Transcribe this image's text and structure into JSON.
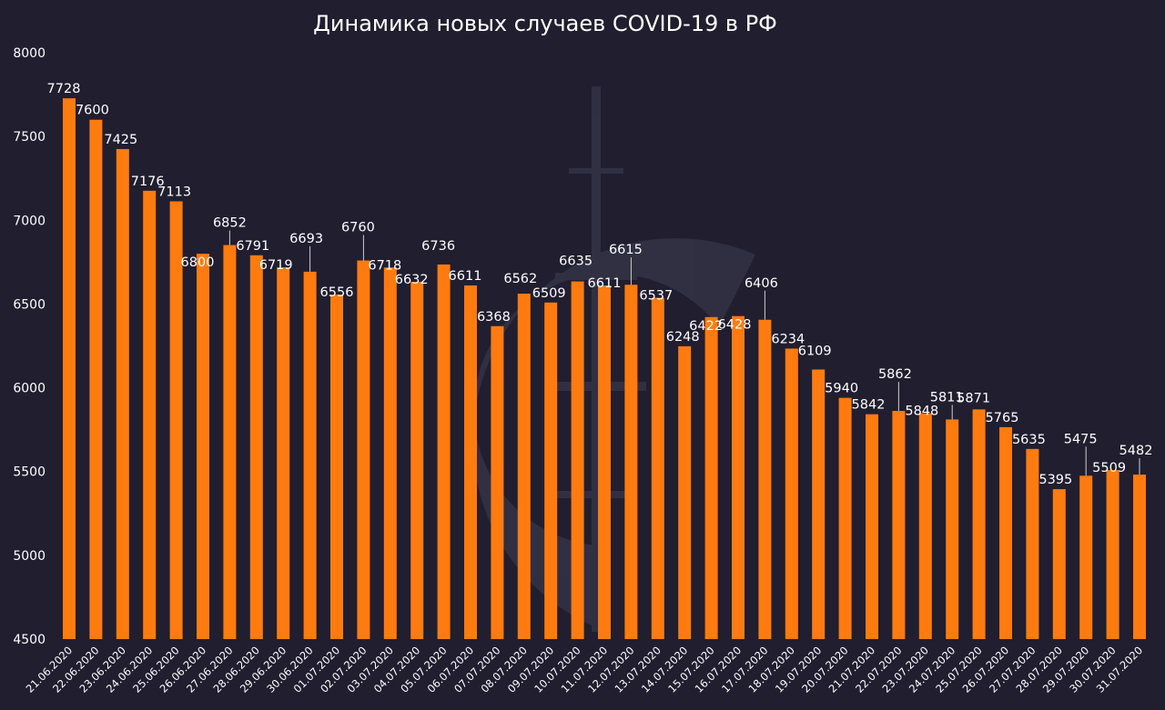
{
  "chart_data": {
    "type": "bar",
    "title": "Динамика новых случаев COVID-19 в РФ",
    "xlabel": "",
    "ylabel": "",
    "ylim": [
      4500,
      8000
    ],
    "yticks": [
      4500,
      5000,
      5500,
      6000,
      6500,
      7000,
      7500,
      8000
    ],
    "grid": false,
    "legend": "none",
    "bar_color": "#ff7b0f",
    "categories": [
      "21.06.2020",
      "22.06.2020",
      "23.06.2020",
      "24.06.2020",
      "25.06.2020",
      "26.06.2020",
      "27.06.2020",
      "28.06.2020",
      "29.06.2020",
      "30.06.2020",
      "01.07.2020",
      "02.07.2020",
      "03.07.2020",
      "04.07.2020",
      "05.07.2020",
      "06.07.2020",
      "07.07.2020",
      "08.07.2020",
      "09.07.2020",
      "10.07.2020",
      "11.07.2020",
      "12.07.2020",
      "13.07.2020",
      "14.07.2020",
      "15.07.2020",
      "16.07.2020",
      "17.07.2020",
      "18.07.2020",
      "19.07.2020",
      "20.07.2020",
      "21.07.2020",
      "22.07.2020",
      "23.07.2020",
      "24.07.2020",
      "25.07.2020",
      "26.07.2020",
      "27.07.2020",
      "28.07.2020",
      "29.07.2020",
      "30.07.2020",
      "31.07.2020"
    ],
    "values": [
      7728,
      7600,
      7425,
      7176,
      7113,
      6800,
      6852,
      6791,
      6719,
      6693,
      6556,
      6760,
      6718,
      6632,
      6736,
      6611,
      6368,
      6562,
      6509,
      6635,
      6611,
      6615,
      6537,
      6248,
      6422,
      6428,
      6406,
      6234,
      6109,
      5940,
      5842,
      5862,
      5848,
      5811,
      5871,
      5765,
      5635,
      5395,
      5475,
      5509,
      5482
    ]
  }
}
